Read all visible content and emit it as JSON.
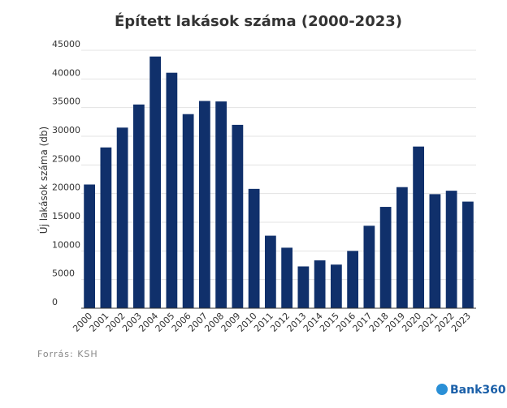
{
  "chart_data": {
    "type": "bar",
    "title": "Épített lakások száma (2000-2023)",
    "y_label": "Új lakások száma (db)",
    "categories": [
      "2000",
      "2001",
      "2002",
      "2003",
      "2004",
      "2005",
      "2006",
      "2007",
      "2008",
      "2009",
      "2010",
      "2011",
      "2012",
      "2013",
      "2014",
      "2015",
      "2016",
      "2017",
      "2018",
      "2019",
      "2020",
      "2021",
      "2022",
      "2023"
    ],
    "values": [
      21583,
      28054,
      31511,
      35543,
      43913,
      41084,
      33864,
      36159,
      36075,
      31994,
      20823,
      12655,
      10560,
      7293,
      8358,
      7612,
      9998,
      14389,
      17681,
      21127,
      28208,
      19900,
      20500,
      18600
    ],
    "color": "#10306b",
    "ylim": [
      0,
      45000
    ],
    "yticks": [
      0,
      5000,
      10000,
      15000,
      20000,
      25000,
      30000,
      35000,
      40000,
      45000
    ],
    "grid": true,
    "source": "Forrás: KSH",
    "brand": "Bank360"
  }
}
